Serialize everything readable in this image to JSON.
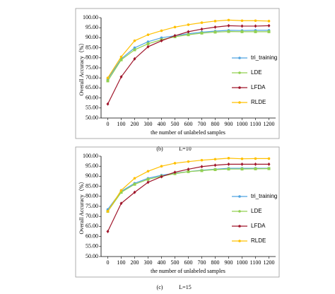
{
  "chart_data": [
    {
      "type": "line",
      "panel": "(b)",
      "caption": "L=10",
      "x_label": "the number of unlabeled samples",
      "y_label": "Overall Accuracy（%）",
      "x": [
        0,
        100,
        200,
        300,
        400,
        500,
        600,
        700,
        800,
        900,
        1000,
        1100,
        1200
      ],
      "xlim": [
        -50,
        1250
      ],
      "xticks": [
        0,
        100,
        200,
        300,
        400,
        500,
        600,
        700,
        800,
        900,
        1000,
        1100,
        1200
      ],
      "ylim": [
        50,
        100
      ],
      "yticks": [
        {
          "value": 50,
          "label": "50.00"
        },
        {
          "value": 55,
          "label": "55.00"
        },
        {
          "value": 60,
          "label": "60.00"
        },
        {
          "value": 65,
          "label": "65.00"
        },
        {
          "value": 70,
          "label": "70.00"
        },
        {
          "value": 75,
          "label": "75.00"
        },
        {
          "value": 80,
          "label": "80.00"
        },
        {
          "value": 85,
          "label": "85.00"
        },
        {
          "value": 90,
          "label": "90.00"
        },
        {
          "value": 95,
          "label": "95.00"
        },
        {
          "value": 100,
          "label": "100.00"
        }
      ],
      "series": [
        {
          "name": "tri_training",
          "color": "#4fa3e0",
          "values": [
            69.5,
            79.5,
            85,
            88,
            90,
            91,
            92,
            92.8,
            93.3,
            93.7,
            93.6,
            93.7,
            93.7
          ]
        },
        {
          "name": "LDE",
          "color": "#92d050",
          "values": [
            68.5,
            79,
            84,
            87,
            89,
            90.5,
            91.5,
            92.3,
            92.8,
            93.1,
            93,
            93,
            93
          ]
        },
        {
          "name": "LFDA",
          "color": "#a0162b",
          "values": [
            57,
            70.5,
            79.5,
            85.5,
            88.5,
            91,
            93,
            94.3,
            95.3,
            96,
            95.8,
            95.8,
            96
          ]
        },
        {
          "name": "RLDE",
          "color": "#ffc000",
          "values": [
            70,
            80.5,
            88.5,
            91.5,
            93.5,
            95.3,
            96.5,
            97.5,
            98.3,
            98.8,
            98.5,
            98.5,
            98.3
          ]
        }
      ]
    },
    {
      "type": "line",
      "panel": "(c)",
      "caption": "L=15",
      "x_label": "the number of unlabeled samples",
      "y_label": "Overall Accuracy（%）",
      "x": [
        0,
        100,
        200,
        300,
        400,
        500,
        600,
        700,
        800,
        900,
        1000,
        1100,
        1200
      ],
      "xlim": [
        -50,
        1250
      ],
      "xticks": [
        0,
        100,
        200,
        300,
        400,
        500,
        600,
        700,
        800,
        900,
        1000,
        1100,
        1200
      ],
      "ylim": [
        50,
        100
      ],
      "yticks": [
        {
          "value": 50,
          "label": "50.00"
        },
        {
          "value": 55,
          "label": "55.00"
        },
        {
          "value": 60,
          "label": "60.00"
        },
        {
          "value": 65,
          "label": "65.00"
        },
        {
          "value": 70,
          "label": "70.00"
        },
        {
          "value": 75,
          "label": "75.00"
        },
        {
          "value": 80,
          "label": "80.00"
        },
        {
          "value": 85,
          "label": "85.00"
        },
        {
          "value": 90,
          "label": "90.00"
        },
        {
          "value": 95,
          "label": "95.00"
        },
        {
          "value": 100,
          "label": "100.00"
        }
      ],
      "series": [
        {
          "name": "tri_training",
          "color": "#4fa3e0",
          "values": [
            73.5,
            82.5,
            86.5,
            89,
            90.5,
            91.5,
            92.3,
            93,
            93.5,
            94,
            94,
            94,
            94
          ]
        },
        {
          "name": "LDE",
          "color": "#92d050",
          "values": [
            72.5,
            82,
            86,
            88.5,
            90,
            91.3,
            92.3,
            92.8,
            93.3,
            93.6,
            93.6,
            93.7,
            93.8
          ]
        },
        {
          "name": "LFDA",
          "color": "#a0162b",
          "values": [
            62.5,
            76.5,
            82,
            87,
            89.8,
            92,
            93.5,
            94.8,
            95.5,
            96,
            96,
            96,
            96
          ]
        },
        {
          "name": "RLDE",
          "color": "#ffc000",
          "values": [
            72.5,
            83,
            89,
            92.5,
            95,
            96.5,
            97.3,
            98,
            98.5,
            99,
            98.7,
            98.8,
            98.8
          ]
        }
      ]
    }
  ]
}
